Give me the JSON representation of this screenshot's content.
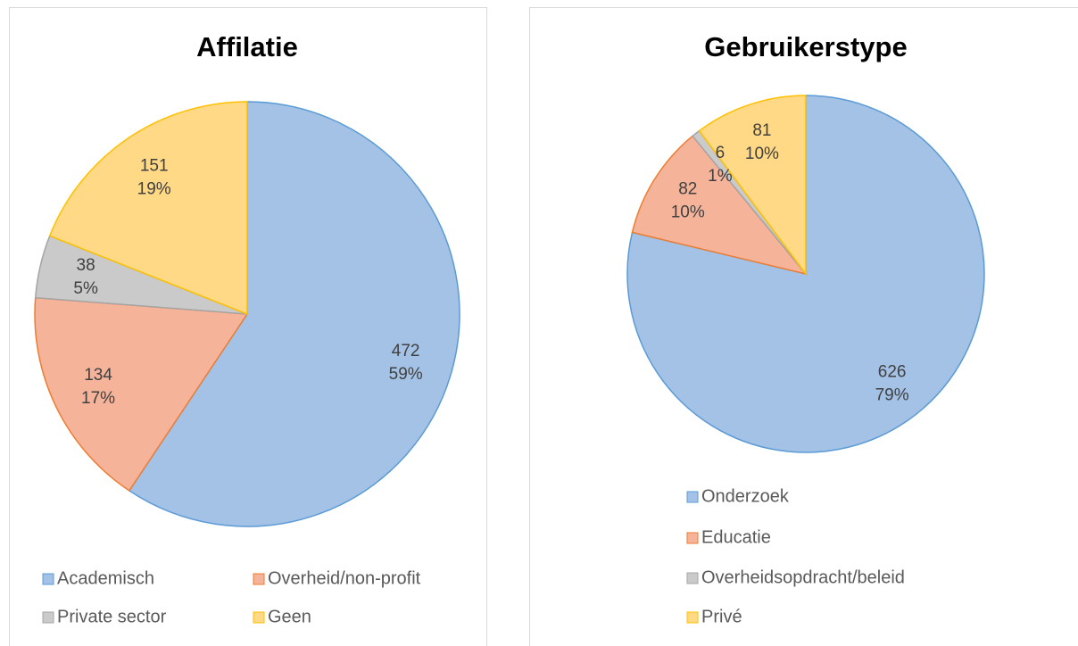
{
  "chart_data": [
    {
      "type": "pie",
      "title": "Affilatie",
      "categories": [
        "Academisch",
        "Overheid/non-profit",
        "Private sector",
        "Geen"
      ],
      "values": [
        472,
        134,
        38,
        151
      ],
      "percent_labels": [
        "59%",
        "17%",
        "5%",
        "19%"
      ],
      "colors": [
        "#a4c2e6",
        "#f5b39a",
        "#cacaca",
        "#ffd985"
      ],
      "edge_colors": [
        "#5b9bd5",
        "#ed7d31",
        "#a5a5a5",
        "#ffc000"
      ],
      "legend": "bottom"
    },
    {
      "type": "pie",
      "title": "Gebruikerstype",
      "categories": [
        "Onderzoek",
        "Educatie",
        "Overheidsopdracht/beleid",
        "Privé"
      ],
      "values": [
        626,
        82,
        6,
        81
      ],
      "percent_labels": [
        "79%",
        "10%",
        "1%",
        "10%"
      ],
      "colors": [
        "#a4c2e6",
        "#f5b39a",
        "#cacaca",
        "#ffd985"
      ],
      "edge_colors": [
        "#5b9bd5",
        "#ed7d31",
        "#a5a5a5",
        "#ffc000"
      ],
      "legend": "bottom"
    }
  ]
}
